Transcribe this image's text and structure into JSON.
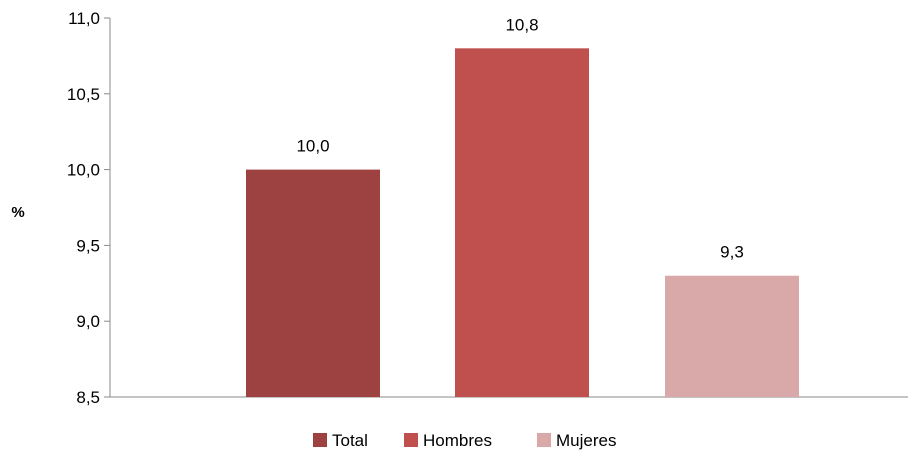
{
  "chart_data": {
    "type": "bar",
    "categories": [
      "Total",
      "Hombres",
      "Mujeres"
    ],
    "values": [
      10.0,
      10.8,
      9.3
    ],
    "value_labels": [
      "10,0",
      "10,8",
      "9,3"
    ],
    "colors": [
      "#9e4141",
      "#c0504d",
      "#d9a9a9"
    ],
    "ylabel": "%",
    "ylim": [
      8.5,
      11.0
    ],
    "yticks": [
      8.5,
      9.0,
      9.5,
      10.0,
      10.5,
      11.0
    ],
    "ytick_labels": [
      "8,5",
      "9,0",
      "9,5",
      "10,0",
      "10,5",
      "11,0"
    ],
    "grid": false,
    "legend": {
      "position": "bottom",
      "entries": [
        "Total",
        "Hombres",
        "Mujeres"
      ]
    }
  }
}
